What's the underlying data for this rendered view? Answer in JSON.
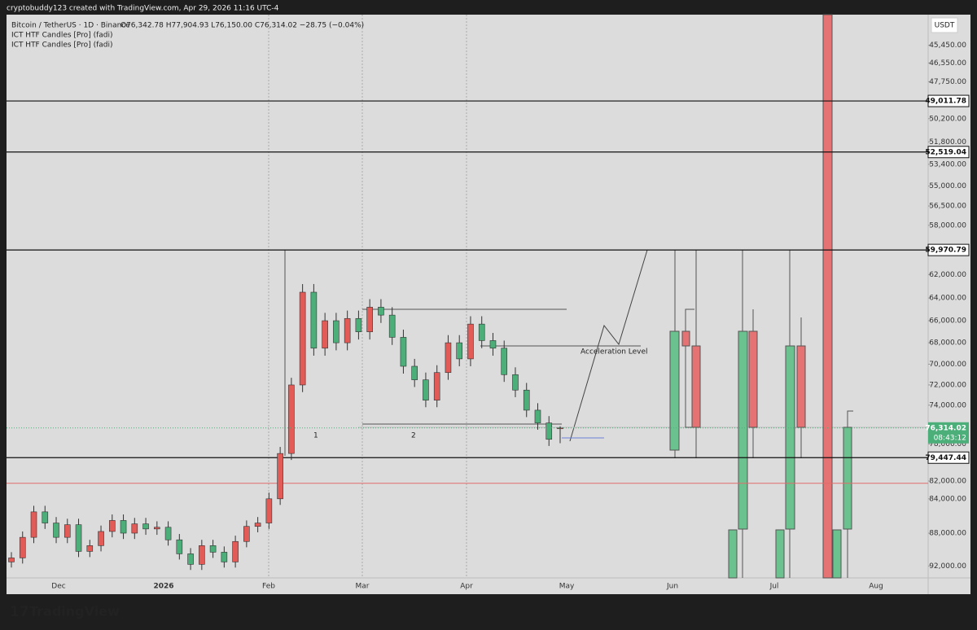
{
  "chart_data": {
    "type": "candlestick",
    "caption": "cryptobuddy123 created with TradingView.com, Apr 29, 2026 11:16 UTC-4",
    "title": "Bitcoin / TetherUS · 1D · Binance",
    "subtitle": "O76,342.78 H77,904.93 L76,150.00 C76,314.02 −28.75 (−0.04%)",
    "indicators": [
      "ICT HTF Candles [Pro] (fadi)",
      "ICT HTF Candles [Pro] (fadi)"
    ],
    "currency": "USDT",
    "brand": "TradingView",
    "annotations": [
      "Acceleration Level",
      "1",
      "2"
    ],
    "x_labels": [
      "Dec",
      "2026",
      "Feb",
      "Mar",
      "Apr",
      "May",
      "Jun",
      "Jul",
      "Aug"
    ],
    "log_scale": true,
    "inverted": true,
    "up_color": "#4caf7a",
    "down_color": "#e25b57",
    "ylim": [
      43700,
      93500
    ],
    "yticks": [
      {
        "value": 45450,
        "label": "45,450.00"
      },
      {
        "value": 46550,
        "label": "46,550.00"
      },
      {
        "value": 47750,
        "label": "47,750.00"
      },
      {
        "value": 50200,
        "label": "50,200.00"
      },
      {
        "value": 51800,
        "label": "51,800.00"
      },
      {
        "value": 53400,
        "label": "53,400.00"
      },
      {
        "value": 55000,
        "label": "55,000.00"
      },
      {
        "value": 56500,
        "label": "56,500.00"
      },
      {
        "value": 58000,
        "label": "58,000.00"
      },
      {
        "value": 62000,
        "label": "62,000.00"
      },
      {
        "value": 64000,
        "label": "64,000.00"
      },
      {
        "value": 66000,
        "label": "66,000.00"
      },
      {
        "value": 68000,
        "label": "68,000.00"
      },
      {
        "value": 70000,
        "label": "70,000.00"
      },
      {
        "value": 72000,
        "label": "72,000.00"
      },
      {
        "value": 74000,
        "label": "74,000.00"
      },
      {
        "value": 78000,
        "label": "78,000.00"
      },
      {
        "value": 82000,
        "label": "82,000.00"
      },
      {
        "value": 84000,
        "label": "84,000.00"
      },
      {
        "value": 88000,
        "label": "88,000.00"
      },
      {
        "value": 92000,
        "label": "92,000.00"
      }
    ],
    "price_levels": [
      {
        "value": 49011.78,
        "label": "49,011.78"
      },
      {
        "value": 52519.04,
        "label": "52,519.04"
      },
      {
        "value": 59970.79,
        "label": "59,970.79"
      },
      {
        "value": 79447.44,
        "label": "79,447.44"
      }
    ],
    "alert_line": {
      "value": 82250,
      "color": "#e06a6a"
    },
    "last_price": {
      "value": 76314.02,
      "label": "76,314.02",
      "countdown": "08:43:12",
      "color": "#4caf7a"
    },
    "open": [
      91500,
      91000,
      88500,
      85500,
      86800,
      88500,
      87000,
      90200,
      89500,
      87800,
      86500,
      88000,
      86900,
      87500,
      87300,
      88800,
      90500,
      91800,
      89500,
      90300,
      91500,
      89000,
      87200,
      86800,
      84000,
      79000,
      72000,
      63500,
      68500,
      66000,
      68000,
      65800,
      67000,
      64800,
      65500,
      67500,
      70200,
      71500,
      73500,
      70800,
      68000,
      69500,
      66300,
      67800,
      68500,
      71000,
      72500,
      74500,
      75800,
      76342.78
    ],
    "high": [
      92200,
      91700,
      89200,
      87500,
      89200,
      89200,
      90900,
      90900,
      90200,
      88500,
      88700,
      88700,
      88200,
      88200,
      89500,
      91200,
      92500,
      92500,
      91000,
      92200,
      92200,
      89700,
      87900,
      87500,
      84700,
      79700,
      72700,
      69200,
      69200,
      68700,
      68700,
      67700,
      67700,
      66200,
      68200,
      70900,
      72200,
      74200,
      74200,
      71500,
      70200,
      70200,
      68500,
      69200,
      71700,
      73200,
      75200,
      76500,
      78200,
      77904.93
    ],
    "low": [
      90300,
      87800,
      84800,
      84800,
      86100,
      86300,
      86300,
      88800,
      87100,
      85800,
      85800,
      86200,
      86200,
      86600,
      86600,
      88100,
      89800,
      88800,
      88800,
      89600,
      88300,
      86500,
      86100,
      83300,
      78300,
      71300,
      62800,
      62800,
      65300,
      65300,
      65100,
      65100,
      64100,
      64100,
      64800,
      66800,
      69500,
      70800,
      70100,
      67300,
      67300,
      65600,
      65600,
      67100,
      67800,
      70300,
      71800,
      73800,
      75100,
      76150.0
    ],
    "close": [
      91000,
      88500,
      85500,
      86800,
      88500,
      87000,
      90200,
      89500,
      87800,
      86500,
      88000,
      86900,
      87500,
      87300,
      88800,
      90500,
      91800,
      89500,
      90300,
      91500,
      89000,
      87200,
      86800,
      84000,
      79000,
      72000,
      63500,
      68500,
      66000,
      68000,
      65800,
      67000,
      64800,
      65500,
      67500,
      70200,
      71500,
      73500,
      70800,
      68000,
      69500,
      66300,
      67800,
      68500,
      71000,
      72500,
      74500,
      75800,
      77500,
      76314.02
    ]
  }
}
